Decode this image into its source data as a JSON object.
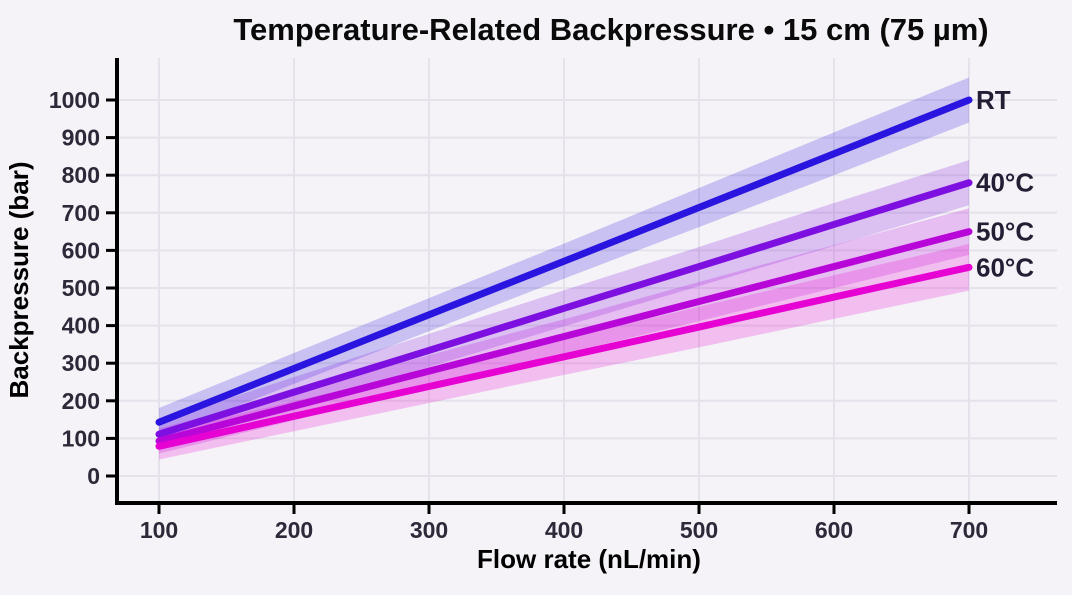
{
  "title": "Temperature-Related Backpressure • 15 cm (75 µm)",
  "colors": {
    "background": "#f5f3f8",
    "grid": "#e4e2ea",
    "axis": "#000000",
    "tick_label": "#2e2839",
    "series_label": "#241d33",
    "title": "#0a0a0a"
  },
  "chart_data": {
    "type": "line",
    "title": "Temperature-Related Backpressure • 15 cm (75 µm)",
    "xlabel": "Flow rate (nL/min)",
    "ylabel": "Backpressure (bar)",
    "x": [
      100,
      200,
      300,
      400,
      500,
      600,
      700
    ],
    "x_ticks": [
      100,
      200,
      300,
      400,
      500,
      600,
      700
    ],
    "y_ticks": [
      0,
      100,
      200,
      300,
      400,
      500,
      600,
      700,
      800,
      900,
      1000
    ],
    "xlim": [
      65,
      765
    ],
    "ylim": [
      -75,
      1115
    ],
    "grid": true,
    "legend_position": "direct-labels-at-line-ends",
    "band_opacity": 0.22,
    "series": [
      {
        "name": "RT",
        "color": "#2a14df",
        "values": [
          143,
          286,
          429,
          571,
          714,
          857,
          1000
        ],
        "lo": [
          105,
          245,
          385,
          525,
          662,
          800,
          940
        ],
        "hi": [
          181,
          327,
          473,
          618,
          766,
          914,
          1060
        ]
      },
      {
        "name": "40°C",
        "color": "#7d10e0",
        "values": [
          111,
          223,
          334,
          446,
          557,
          669,
          780
        ],
        "lo": [
          76,
          183,
          290,
          398,
          505,
          612,
          720
        ],
        "hi": [
          146,
          263,
          378,
          494,
          609,
          726,
          840
        ]
      },
      {
        "name": "50°C",
        "color": "#b806d9",
        "values": [
          93,
          186,
          279,
          371,
          464,
          557,
          650
        ],
        "lo": [
          60,
          148,
          237,
          325,
          412,
          500,
          588
        ],
        "hi": [
          126,
          224,
          321,
          417,
          516,
          614,
          712
        ]
      },
      {
        "name": "60°C",
        "color": "#e602d2",
        "values": [
          79,
          159,
          238,
          317,
          396,
          476,
          555
        ],
        "lo": [
          44,
          119,
          194,
          269,
          342,
          418,
          493
        ],
        "hi": [
          114,
          199,
          282,
          365,
          450,
          534,
          617
        ]
      }
    ]
  }
}
